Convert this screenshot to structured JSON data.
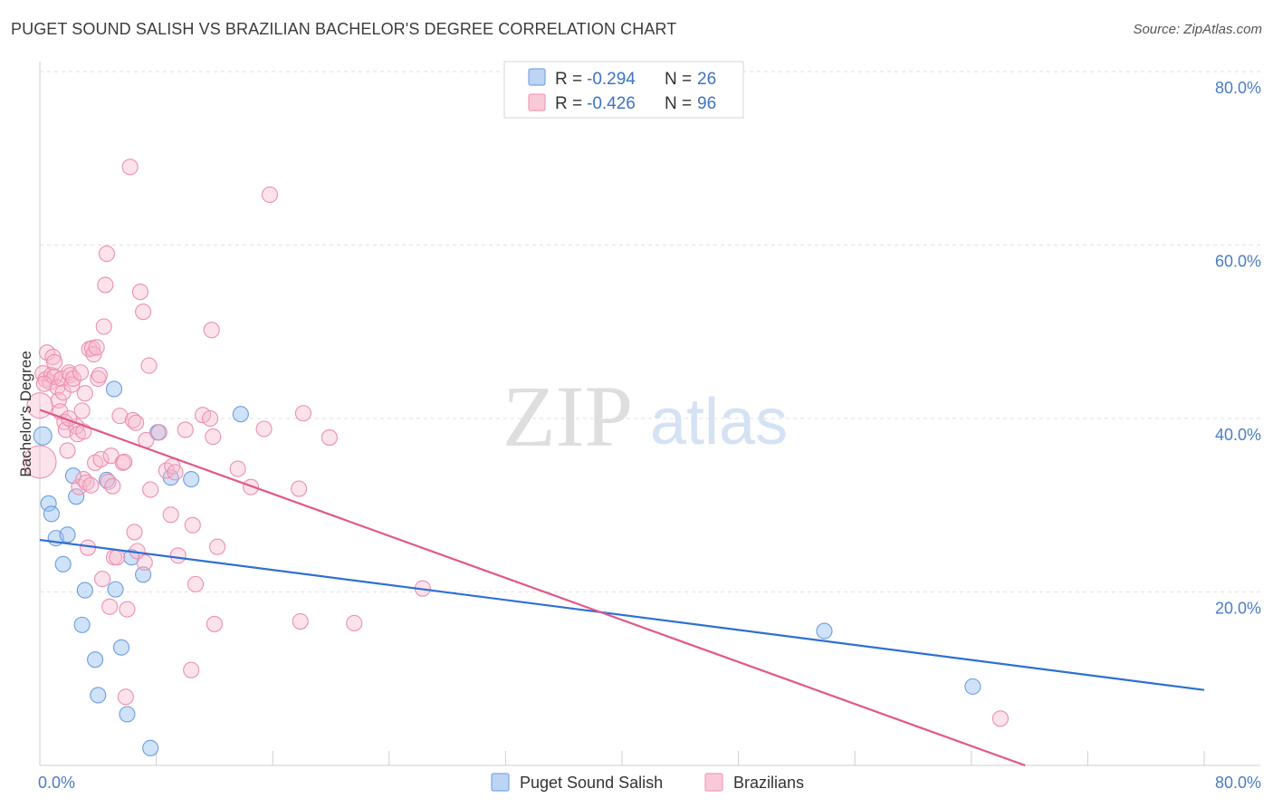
{
  "header": {
    "title": "PUGET SOUND SALISH VS BRAZILIAN BACHELOR'S DEGREE CORRELATION CHART",
    "source": "Source: ZipAtlas.com"
  },
  "watermark": {
    "zip": "ZIP",
    "atlas": "atlas"
  },
  "legend": {
    "items": [
      {
        "r_label": "R = ",
        "r_value": "-0.294",
        "n_label": "N = ",
        "n_value": "26",
        "color": "#a9c8f0"
      },
      {
        "r_label": "R = ",
        "r_value": "-0.426",
        "n_label": "N = ",
        "n_value": "96",
        "color": "#f7b8cc"
      }
    ]
  },
  "chart_data": {
    "type": "scatter",
    "title": "PUGET SOUND SALISH VS BRAZILIAN BACHELOR'S DEGREE CORRELATION CHART",
    "xlabel": "",
    "ylabel": "Bachelor's Degree",
    "xlim": [
      0,
      80
    ],
    "ylim": [
      0,
      80
    ],
    "x_tick_labels": [
      "0.0%",
      "80.0%"
    ],
    "y_tick_labels": [
      "20.0%",
      "40.0%",
      "60.0%",
      "80.0%"
    ],
    "y_ticks": [
      20,
      40,
      60,
      80
    ],
    "grid": "horizontal dashed",
    "legend_position": "top-center",
    "series": [
      {
        "name": "Puget Sound Salish",
        "color": "#6a9de0",
        "trend": {
          "x": [
            0,
            80
          ],
          "y": [
            26.0,
            8.7
          ],
          "color": "#2f6fd1"
        },
        "points": [
          [
            0.2,
            38.0
          ],
          [
            0.6,
            30.2
          ],
          [
            0.8,
            29.0
          ],
          [
            1.1,
            26.2
          ],
          [
            1.6,
            23.2
          ],
          [
            1.9,
            26.6
          ],
          [
            2.3,
            33.4
          ],
          [
            2.5,
            31.0
          ],
          [
            2.9,
            16.2
          ],
          [
            3.1,
            20.2
          ],
          [
            3.8,
            12.2
          ],
          [
            4.0,
            8.1
          ],
          [
            4.6,
            32.9
          ],
          [
            5.1,
            43.4
          ],
          [
            5.2,
            20.3
          ],
          [
            5.6,
            13.6
          ],
          [
            6.0,
            5.9
          ],
          [
            6.3,
            24.0
          ],
          [
            7.1,
            22.0
          ],
          [
            7.6,
            2.0
          ],
          [
            8.1,
            38.4
          ],
          [
            9.0,
            33.2
          ],
          [
            10.4,
            33.0
          ],
          [
            13.8,
            40.5
          ],
          [
            53.9,
            15.5
          ],
          [
            64.1,
            9.1
          ]
        ]
      },
      {
        "name": "Brazilians",
        "color": "#f090b0",
        "trend": {
          "x": [
            0,
            67.7
          ],
          "y": [
            41.0,
            0.0
          ],
          "color": "#e0588a"
        },
        "points": [
          [
            0.0,
            35.0
          ],
          [
            0.0,
            41.5
          ],
          [
            0.2,
            45.2
          ],
          [
            0.4,
            44.5
          ],
          [
            0.5,
            47.6
          ],
          [
            0.7,
            44.2
          ],
          [
            0.8,
            45.0
          ],
          [
            0.9,
            47.1
          ],
          [
            1.0,
            44.8
          ],
          [
            1.2,
            43.6
          ],
          [
            1.3,
            42.1
          ],
          [
            1.4,
            40.8
          ],
          [
            1.5,
            44.6
          ],
          [
            1.6,
            43.0
          ],
          [
            1.7,
            39.6
          ],
          [
            1.8,
            38.7
          ],
          [
            1.9,
            36.3
          ],
          [
            2.0,
            45.3
          ],
          [
            2.1,
            45.0
          ],
          [
            2.2,
            43.9
          ],
          [
            2.3,
            44.6
          ],
          [
            2.5,
            39.1
          ],
          [
            2.6,
            38.2
          ],
          [
            2.7,
            32.1
          ],
          [
            2.8,
            45.3
          ],
          [
            2.9,
            40.9
          ],
          [
            3.0,
            33.0
          ],
          [
            3.1,
            42.9
          ],
          [
            3.2,
            32.6
          ],
          [
            3.3,
            25.1
          ],
          [
            3.4,
            48.0
          ],
          [
            3.5,
            32.3
          ],
          [
            3.6,
            48.1
          ],
          [
            3.7,
            47.4
          ],
          [
            3.8,
            34.9
          ],
          [
            3.9,
            48.2
          ],
          [
            4.0,
            44.6
          ],
          [
            4.1,
            45.0
          ],
          [
            4.2,
            35.3
          ],
          [
            4.3,
            21.5
          ],
          [
            4.4,
            50.6
          ],
          [
            4.5,
            55.4
          ],
          [
            4.6,
            59.0
          ],
          [
            4.7,
            32.7
          ],
          [
            4.8,
            18.3
          ],
          [
            4.9,
            35.7
          ],
          [
            5.0,
            32.2
          ],
          [
            5.1,
            24.0
          ],
          [
            5.3,
            24.0
          ],
          [
            5.5,
            40.3
          ],
          [
            5.7,
            34.9
          ],
          [
            5.9,
            7.9
          ],
          [
            6.0,
            18.0
          ],
          [
            6.2,
            69.0
          ],
          [
            6.4,
            39.8
          ],
          [
            6.5,
            26.9
          ],
          [
            6.6,
            39.5
          ],
          [
            6.7,
            24.7
          ],
          [
            6.9,
            54.6
          ],
          [
            7.1,
            52.3
          ],
          [
            7.2,
            23.4
          ],
          [
            7.3,
            37.5
          ],
          [
            7.5,
            46.1
          ],
          [
            7.6,
            31.8
          ],
          [
            8.2,
            38.4
          ],
          [
            8.7,
            34.0
          ],
          [
            9.0,
            28.9
          ],
          [
            9.1,
            34.5
          ],
          [
            9.3,
            33.8
          ],
          [
            9.5,
            24.2
          ],
          [
            10.0,
            38.7
          ],
          [
            10.4,
            11.0
          ],
          [
            10.5,
            27.7
          ],
          [
            10.7,
            20.9
          ],
          [
            11.2,
            40.4
          ],
          [
            11.7,
            40.0
          ],
          [
            11.8,
            50.2
          ],
          [
            11.9,
            37.9
          ],
          [
            12.0,
            16.3
          ],
          [
            12.2,
            25.2
          ],
          [
            13.6,
            34.2
          ],
          [
            14.5,
            32.1
          ],
          [
            15.4,
            38.8
          ],
          [
            15.8,
            65.8
          ],
          [
            17.8,
            31.9
          ],
          [
            17.9,
            16.6
          ],
          [
            18.1,
            40.6
          ],
          [
            19.9,
            37.8
          ],
          [
            21.6,
            16.4
          ],
          [
            26.3,
            20.4
          ],
          [
            66.0,
            5.4
          ],
          [
            2.0,
            40.0
          ],
          [
            3.0,
            38.5
          ],
          [
            1.0,
            46.5
          ],
          [
            0.3,
            44.0
          ],
          [
            5.8,
            35.0
          ]
        ]
      }
    ],
    "bottom_legend": [
      "Puget Sound Salish",
      "Brazilians"
    ]
  }
}
